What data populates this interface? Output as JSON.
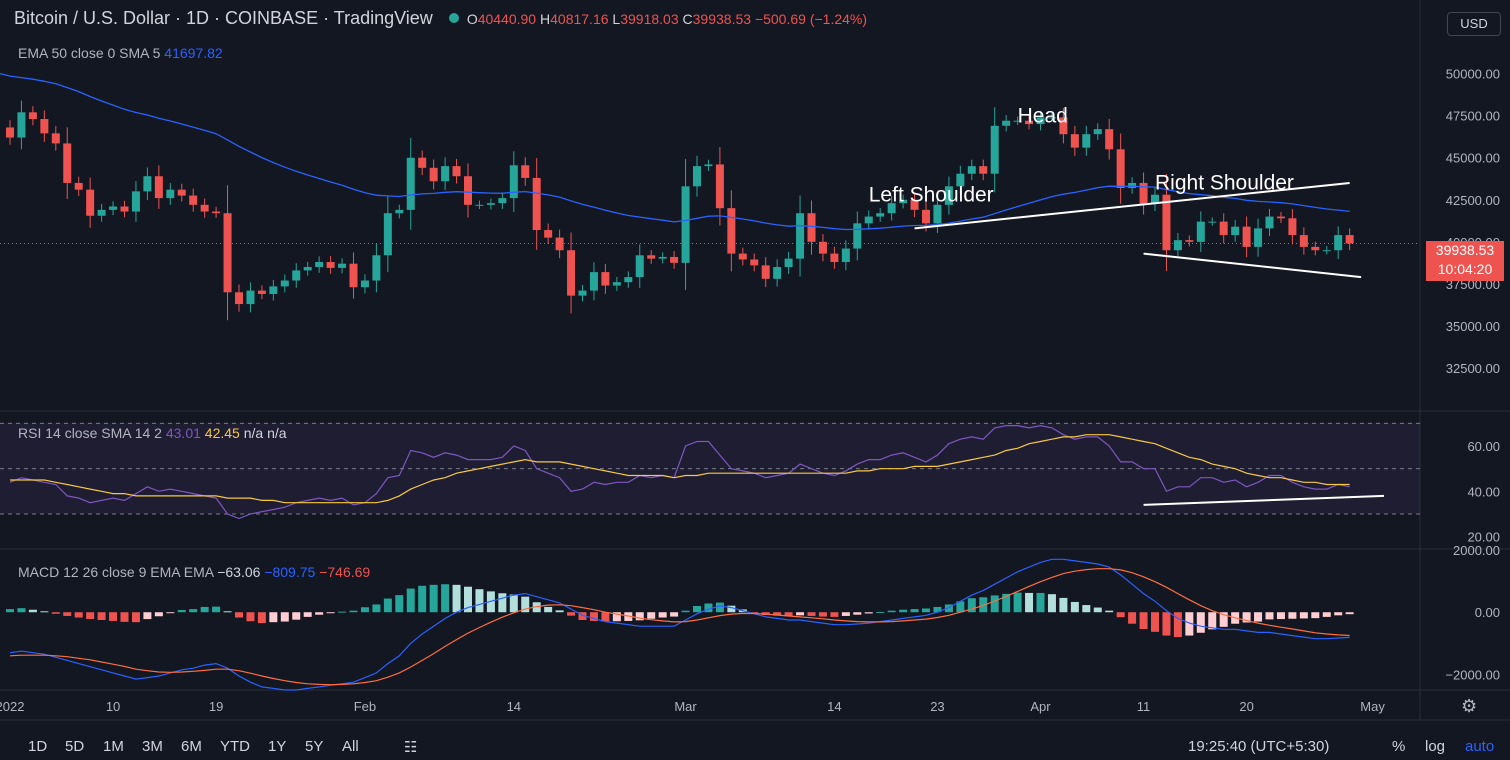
{
  "header": {
    "title": "Bitcoin / U.S. Dollar · 1D · COINBASE · TradingView",
    "open_label": "O",
    "open": "40440.90",
    "high_label": "H",
    "high": "40817.16",
    "low_label": "L",
    "low": "39918.03",
    "close_label": "C",
    "close": "39938.53",
    "change": "−500.69 (−1.24%)"
  },
  "ema_legend": {
    "label": "EMA 50 close 0 SMA 5",
    "value": "41697.82"
  },
  "rsi_legend": {
    "label": "RSI 14 close SMA 14 2",
    "v1": "43.01",
    "v2": "42.45",
    "v3": "n/a n/a"
  },
  "macd_legend": {
    "label": "MACD 12 26 close 9 EMA EMA",
    "v1": "−63.06",
    "v2": "−809.75",
    "v3": "−746.69"
  },
  "currency_button": "USD",
  "last_price": {
    "price": "39938.53",
    "countdown": "10:04:20"
  },
  "toolbar": {
    "ranges": [
      "1D",
      "5D",
      "1M",
      "3M",
      "6M",
      "YTD",
      "1Y",
      "5Y",
      "All"
    ],
    "clock": "19:25:40 (UTC+5:30)",
    "percent": "%",
    "log": "log",
    "auto": "auto"
  },
  "colors": {
    "up": "#26a69a",
    "down": "#ef5350",
    "ema": "#2962ff",
    "rsi": "#7e57c2",
    "rsi_ma": "#f7c843",
    "macd": "#2962ff",
    "signal": "#ff6d3f"
  },
  "chart_data": [
    {
      "type": "candlestick",
      "ylim": [
        30000,
        52000
      ],
      "yticks": [
        "50000.00",
        "47500.00",
        "45000.00",
        "42500.00",
        "40000.00",
        "37500.00",
        "35000.00",
        "32500.00"
      ],
      "ytick_values": [
        50000,
        47500,
        45000,
        42500,
        40000,
        37500,
        35000,
        32500
      ],
      "xticks": [
        "2022",
        "10",
        "19",
        "Feb",
        "14",
        "Mar",
        "14",
        "23",
        "Apr",
        "11",
        "20",
        "May"
      ],
      "xtick_index": [
        0,
        9,
        18,
        31,
        44,
        59,
        72,
        81,
        90,
        99,
        108,
        119
      ],
      "closes": [
        46200,
        47700,
        47300,
        46450,
        45850,
        43500,
        43100,
        41550,
        41900,
        42100,
        41800,
        43000,
        43900,
        42600,
        43100,
        42750,
        42200,
        41800,
        41700,
        37000,
        36300,
        37100,
        36900,
        37350,
        37700,
        38300,
        38500,
        38800,
        38450,
        38700,
        37300,
        37700,
        39200,
        41700,
        41900,
        45000,
        44400,
        43600,
        44500,
        43900,
        42200,
        42200,
        42300,
        42600,
        44550,
        43800,
        40700,
        40250,
        39500,
        36800,
        37100,
        38200,
        37400,
        37600,
        37900,
        39200,
        39000,
        39100,
        38750,
        43300,
        44500,
        44600,
        42000,
        39300,
        38950,
        38600,
        37800,
        38500,
        39000,
        41700,
        40000,
        39300,
        38800,
        39600,
        41100,
        41500,
        41700,
        42300,
        42500,
        41900,
        41100,
        42200,
        43300,
        44050,
        44500,
        44050,
        46900,
        47200,
        47200,
        47000,
        47400,
        47400,
        46400,
        45600,
        46400,
        46700,
        45500,
        43200,
        43500,
        42250,
        42800,
        39500,
        40100,
        40000,
        41200,
        41200,
        40400,
        40900,
        39700,
        40800,
        41500,
        41400,
        40400,
        39700,
        39500,
        39500,
        40400,
        39900
      ],
      "ema50_start": 50000,
      "ema50_last": "41697.82",
      "annotations": [
        "Head",
        "Left Shoulder",
        "Right Shoulder"
      ]
    },
    {
      "type": "line",
      "name": "RSI",
      "ylim": [
        15,
        75
      ],
      "yticks": [
        "60.00",
        "40.00",
        "20.00"
      ],
      "ytick_values": [
        60,
        40,
        20
      ],
      "bands": [
        70,
        50,
        30
      ],
      "values": [
        44,
        46,
        45,
        44,
        43,
        38,
        37,
        35,
        36,
        37,
        36,
        39,
        42,
        40,
        41,
        40,
        39,
        38,
        37,
        30,
        28,
        30,
        31,
        32,
        33,
        35,
        36,
        37,
        36,
        37,
        34,
        35,
        39,
        46,
        47,
        58,
        57,
        55,
        57,
        56,
        54,
        54,
        54,
        55,
        60,
        58,
        50,
        48,
        46,
        40,
        41,
        44,
        43,
        44,
        44,
        47,
        46,
        47,
        46,
        60,
        62,
        62,
        56,
        50,
        49,
        48,
        46,
        47,
        48,
        52,
        50,
        48,
        47,
        49,
        52,
        54,
        54,
        56,
        57,
        55,
        53,
        56,
        61,
        63,
        64,
        63,
        68,
        69,
        69,
        68,
        69,
        68,
        65,
        63,
        64,
        64,
        60,
        53,
        53,
        50,
        50,
        40,
        42,
        42,
        46,
        46,
        44,
        45,
        42,
        44,
        47,
        47,
        44,
        42,
        41,
        41,
        43,
        42
      ],
      "ma_values": [
        45,
        45,
        45,
        45,
        44,
        43,
        42,
        41,
        40,
        39,
        39,
        38,
        38,
        38,
        38,
        38,
        38,
        38,
        38,
        37,
        37,
        37,
        36,
        36,
        35,
        35,
        35,
        35,
        35,
        35,
        35,
        35,
        35,
        36,
        38,
        41,
        43,
        45,
        46,
        48,
        49,
        50,
        51,
        52,
        53,
        54,
        53,
        53,
        53,
        52,
        51,
        50,
        49,
        48,
        47,
        47,
        47,
        47,
        46,
        47,
        47,
        48,
        48,
        48,
        48,
        48,
        48,
        48,
        48,
        48,
        48,
        48,
        48,
        48,
        49,
        49,
        50,
        50,
        50,
        51,
        51,
        51,
        52,
        53,
        54,
        55,
        56,
        58,
        59,
        61,
        62,
        63,
        64,
        64,
        65,
        65,
        65,
        64,
        63,
        62,
        61,
        59,
        57,
        55,
        54,
        52,
        51,
        50,
        48,
        47,
        46,
        46,
        45,
        44,
        44,
        43,
        43,
        43
      ],
      "trendline": "rising support"
    },
    {
      "type": "bar",
      "name": "MACD",
      "ylim": [
        -2500,
        2000
      ],
      "yticks": [
        "2000.00",
        "0.00",
        "−2000.00"
      ],
      "ytick_values": [
        2000,
        0,
        -2000
      ],
      "macd": [
        -1300,
        -1250,
        -1300,
        -1350,
        -1450,
        -1550,
        -1650,
        -1750,
        -1850,
        -1950,
        -2050,
        -2150,
        -2100,
        -2050,
        -1950,
        -1850,
        -1800,
        -1700,
        -1650,
        -1800,
        -2050,
        -2250,
        -2400,
        -2450,
        -2500,
        -2500,
        -2450,
        -2400,
        -2350,
        -2300,
        -2250,
        -2100,
        -1950,
        -1650,
        -1400,
        -1000,
        -700,
        -450,
        -200,
        0,
        150,
        250,
        350,
        450,
        550,
        600,
        500,
        400,
        300,
        100,
        -100,
        -200,
        -300,
        -350,
        -400,
        -450,
        -450,
        -450,
        -450,
        -250,
        -50,
        100,
        200,
        150,
        50,
        -50,
        -150,
        -200,
        -250,
        -250,
        -300,
        -350,
        -400,
        -400,
        -380,
        -350,
        -300,
        -250,
        -200,
        -150,
        -100,
        0,
        150,
        350,
        550,
        700,
        900,
        1100,
        1300,
        1450,
        1600,
        1700,
        1700,
        1650,
        1600,
        1550,
        1450,
        1200,
        900,
        600,
        350,
        50,
        -200,
        -350,
        -450,
        -500,
        -550,
        -550,
        -600,
        -650,
        -650,
        -700,
        -750,
        -800,
        -850,
        -850,
        -830,
        -810
      ],
      "signal": [
        -1400,
        -1380,
        -1380,
        -1380,
        -1400,
        -1430,
        -1480,
        -1530,
        -1600,
        -1670,
        -1740,
        -1830,
        -1880,
        -1920,
        -1930,
        -1920,
        -1900,
        -1870,
        -1830,
        -1830,
        -1880,
        -1960,
        -2050,
        -2130,
        -2200,
        -2260,
        -2300,
        -2320,
        -2330,
        -2320,
        -2300,
        -2260,
        -2200,
        -2090,
        -1950,
        -1760,
        -1550,
        -1330,
        -1100,
        -880,
        -670,
        -490,
        -320,
        -160,
        -20,
        100,
        180,
        230,
        240,
        210,
        150,
        80,
        0,
        -60,
        -120,
        -190,
        -240,
        -280,
        -310,
        -300,
        -250,
        -180,
        -110,
        -60,
        -40,
        -40,
        -60,
        -90,
        -120,
        -150,
        -180,
        -210,
        -250,
        -280,
        -300,
        -310,
        -310,
        -300,
        -280,
        -250,
        -220,
        -170,
        -100,
        0,
        100,
        220,
        360,
        510,
        670,
        830,
        980,
        1120,
        1240,
        1320,
        1370,
        1400,
        1400,
        1360,
        1270,
        1140,
        980,
        800,
        600,
        400,
        210,
        50,
        -80,
        -180,
        -270,
        -350,
        -420,
        -480,
        -540,
        -600,
        -660,
        -700,
        -730,
        -747
      ]
    }
  ]
}
